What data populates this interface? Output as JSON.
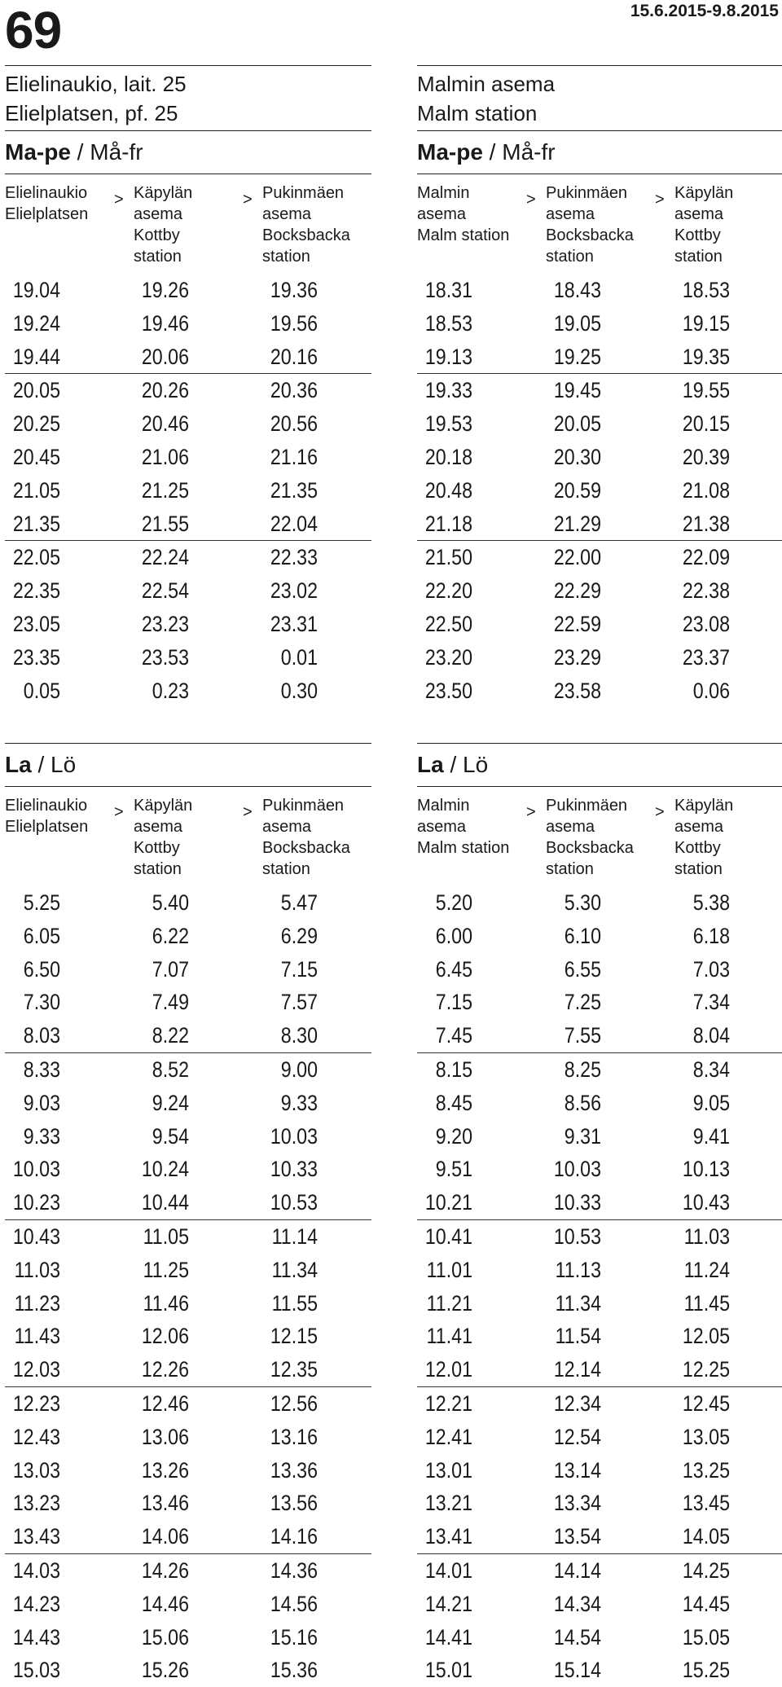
{
  "route_number": "69",
  "validity": "15.6.2015-9.8.2015",
  "left": {
    "stop_fi": "Elielinaukio, lait. 25",
    "stop_sv": "Elielplatsen, pf. 25",
    "weekday": {
      "title_fi": "Ma-pe",
      "title_sep": " / ",
      "title_sv": "Må-fr",
      "headers": [
        "Elielinaukio\nElielplatsen",
        "Käpylän\nasema\nKottby\nstation",
        "Pukinmäen\nasema\nBocksbacka\nstation"
      ],
      "arrow": ">",
      "rows": [
        [
          "19.04",
          "19.26",
          "19.36"
        ],
        [
          "19.24",
          "19.46",
          "19.56"
        ],
        [
          "19.44",
          "20.06",
          "20.16"
        ],
        [
          "20.05",
          "20.26",
          "20.36"
        ],
        [
          "20.25",
          "20.46",
          "20.56"
        ],
        [
          "20.45",
          "21.06",
          "21.16"
        ],
        [
          "21.05",
          "21.25",
          "21.35"
        ],
        [
          "21.35",
          "21.55",
          "22.04"
        ],
        [
          "22.05",
          "22.24",
          "22.33"
        ],
        [
          "22.35",
          "22.54",
          "23.02"
        ],
        [
          "23.05",
          "23.23",
          "23.31"
        ],
        [
          "23.35",
          "23.53",
          "0.01"
        ],
        [
          "0.05",
          "0.23",
          "0.30"
        ]
      ]
    },
    "saturday": {
      "title_fi": "La",
      "title_sep": " / ",
      "title_sv": "Lö",
      "headers": [
        "Elielinaukio\nElielplatsen",
        "Käpylän\nasema\nKottby\nstation",
        "Pukinmäen\nasema\nBocksbacka\nstation"
      ],
      "arrow": ">",
      "rows": [
        [
          "5.25",
          "5.40",
          "5.47"
        ],
        [
          "6.05",
          "6.22",
          "6.29"
        ],
        [
          "6.50",
          "7.07",
          "7.15"
        ],
        [
          "7.30",
          "7.49",
          "7.57"
        ],
        [
          "8.03",
          "8.22",
          "8.30"
        ],
        [
          "8.33",
          "8.52",
          "9.00"
        ],
        [
          "9.03",
          "9.24",
          "9.33"
        ],
        [
          "9.33",
          "9.54",
          "10.03"
        ],
        [
          "10.03",
          "10.24",
          "10.33"
        ],
        [
          "10.23",
          "10.44",
          "10.53"
        ],
        [
          "10.43",
          "11.05",
          "11.14"
        ],
        [
          "11.03",
          "11.25",
          "11.34"
        ],
        [
          "11.23",
          "11.46",
          "11.55"
        ],
        [
          "11.43",
          "12.06",
          "12.15"
        ],
        [
          "12.03",
          "12.26",
          "12.35"
        ],
        [
          "12.23",
          "12.46",
          "12.56"
        ],
        [
          "12.43",
          "13.06",
          "13.16"
        ],
        [
          "13.03",
          "13.26",
          "13.36"
        ],
        [
          "13.23",
          "13.46",
          "13.56"
        ],
        [
          "13.43",
          "14.06",
          "14.16"
        ],
        [
          "14.03",
          "14.26",
          "14.36"
        ],
        [
          "14.23",
          "14.46",
          "14.56"
        ],
        [
          "14.43",
          "15.06",
          "15.16"
        ],
        [
          "15.03",
          "15.26",
          "15.36"
        ]
      ]
    }
  },
  "right": {
    "stop_fi": "Malmin asema",
    "stop_sv": "Malm station",
    "weekday": {
      "title_fi": "Ma-pe",
      "title_sep": " / ",
      "title_sv": "Må-fr",
      "headers": [
        "Malmin\nasema\nMalm station",
        "Pukinmäen\nasema\nBocksbacka\nstation",
        "Käpylän\nasema\nKottby\nstation"
      ],
      "arrow": ">",
      "rows": [
        [
          "18.31",
          "18.43",
          "18.53"
        ],
        [
          "18.53",
          "19.05",
          "19.15"
        ],
        [
          "19.13",
          "19.25",
          "19.35"
        ],
        [
          "19.33",
          "19.45",
          "19.55"
        ],
        [
          "19.53",
          "20.05",
          "20.15"
        ],
        [
          "20.18",
          "20.30",
          "20.39"
        ],
        [
          "20.48",
          "20.59",
          "21.08"
        ],
        [
          "21.18",
          "21.29",
          "21.38"
        ],
        [
          "21.50",
          "22.00",
          "22.09"
        ],
        [
          "22.20",
          "22.29",
          "22.38"
        ],
        [
          "22.50",
          "22.59",
          "23.08"
        ],
        [
          "23.20",
          "23.29",
          "23.37"
        ],
        [
          "23.50",
          "23.58",
          "0.06"
        ]
      ]
    },
    "saturday": {
      "title_fi": "La",
      "title_sep": " / ",
      "title_sv": "Lö",
      "headers": [
        "Malmin\nasema\nMalm station",
        "Pukinmäen\nasema\nBocksbacka\nstation",
        "Käpylän\nasema\nKottby\nstation"
      ],
      "arrow": ">",
      "rows": [
        [
          "5.20",
          "5.30",
          "5.38"
        ],
        [
          "6.00",
          "6.10",
          "6.18"
        ],
        [
          "6.45",
          "6.55",
          "7.03"
        ],
        [
          "7.15",
          "7.25",
          "7.34"
        ],
        [
          "7.45",
          "7.55",
          "8.04"
        ],
        [
          "8.15",
          "8.25",
          "8.34"
        ],
        [
          "8.45",
          "8.56",
          "9.05"
        ],
        [
          "9.20",
          "9.31",
          "9.41"
        ],
        [
          "9.51",
          "10.03",
          "10.13"
        ],
        [
          "10.21",
          "10.33",
          "10.43"
        ],
        [
          "10.41",
          "10.53",
          "11.03"
        ],
        [
          "11.01",
          "11.13",
          "11.24"
        ],
        [
          "11.21",
          "11.34",
          "11.45"
        ],
        [
          "11.41",
          "11.54",
          "12.05"
        ],
        [
          "12.01",
          "12.14",
          "12.25"
        ],
        [
          "12.21",
          "12.34",
          "12.45"
        ],
        [
          "12.41",
          "12.54",
          "13.05"
        ],
        [
          "13.01",
          "13.14",
          "13.25"
        ],
        [
          "13.21",
          "13.34",
          "13.45"
        ],
        [
          "13.41",
          "13.54",
          "14.05"
        ],
        [
          "14.01",
          "14.14",
          "14.25"
        ],
        [
          "14.21",
          "14.34",
          "14.45"
        ],
        [
          "14.41",
          "14.54",
          "15.05"
        ],
        [
          "15.01",
          "15.14",
          "15.25"
        ]
      ]
    }
  }
}
